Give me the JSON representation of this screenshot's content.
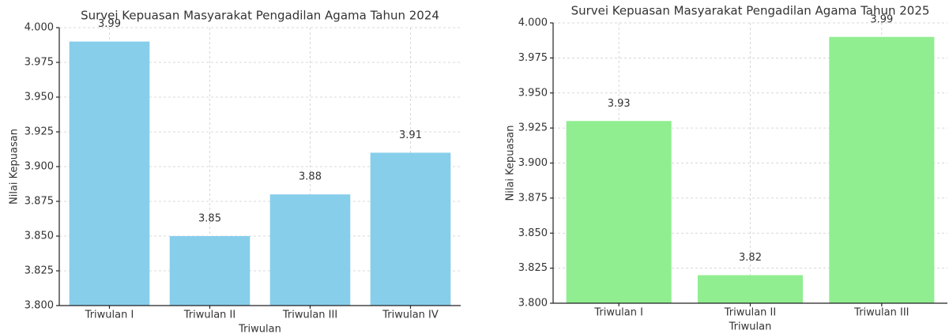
{
  "chart_data": [
    {
      "type": "bar",
      "title": "Survei Kepuasan Masyarakat Pengadilan Agama Tahun 2024",
      "x_label": "Triwulan",
      "y_label": "Nilai Kepuasan",
      "categories": [
        "Triwulan I",
        "Triwulan II",
        "Triwulan III",
        "Triwulan IV"
      ],
      "values": [
        3.99,
        3.85,
        3.88,
        3.91
      ],
      "color": "#87ceeb",
      "ylim": [
        3.8,
        4.0
      ],
      "yticks": [
        {
          "value": 3.8,
          "label": "3.800"
        },
        3.825,
        {
          "value": 3.85,
          "label": "3.850"
        },
        3.875,
        {
          "value": 3.9,
          "label": "3.900"
        },
        3.925,
        {
          "value": 3.95,
          "label": "3.950"
        },
        3.975,
        {
          "value": 4.0,
          "label": "4.000"
        }
      ],
      "grid": true
    },
    {
      "type": "bar",
      "title": "Survei Kepuasan Masyarakat Pengadilan Agama Tahun 2025",
      "x_label": "Triwulan",
      "y_label": "Nilai Kepuasan",
      "categories": [
        "Triwulan I",
        "Triwulan II",
        "Triwulan III"
      ],
      "values": [
        3.93,
        3.82,
        3.99
      ],
      "color": "#90ee90",
      "ylim": [
        3.8,
        4.0
      ],
      "yticks": [
        {
          "value": 3.8,
          "label": "3.800"
        },
        3.825,
        {
          "value": 3.85,
          "label": "3.850"
        },
        3.875,
        {
          "value": 3.9,
          "label": "3.900"
        },
        3.925,
        {
          "value": 3.95,
          "label": "3.950"
        },
        3.975,
        {
          "value": 4.0,
          "label": "4.000"
        }
      ],
      "grid": true
    }
  ]
}
